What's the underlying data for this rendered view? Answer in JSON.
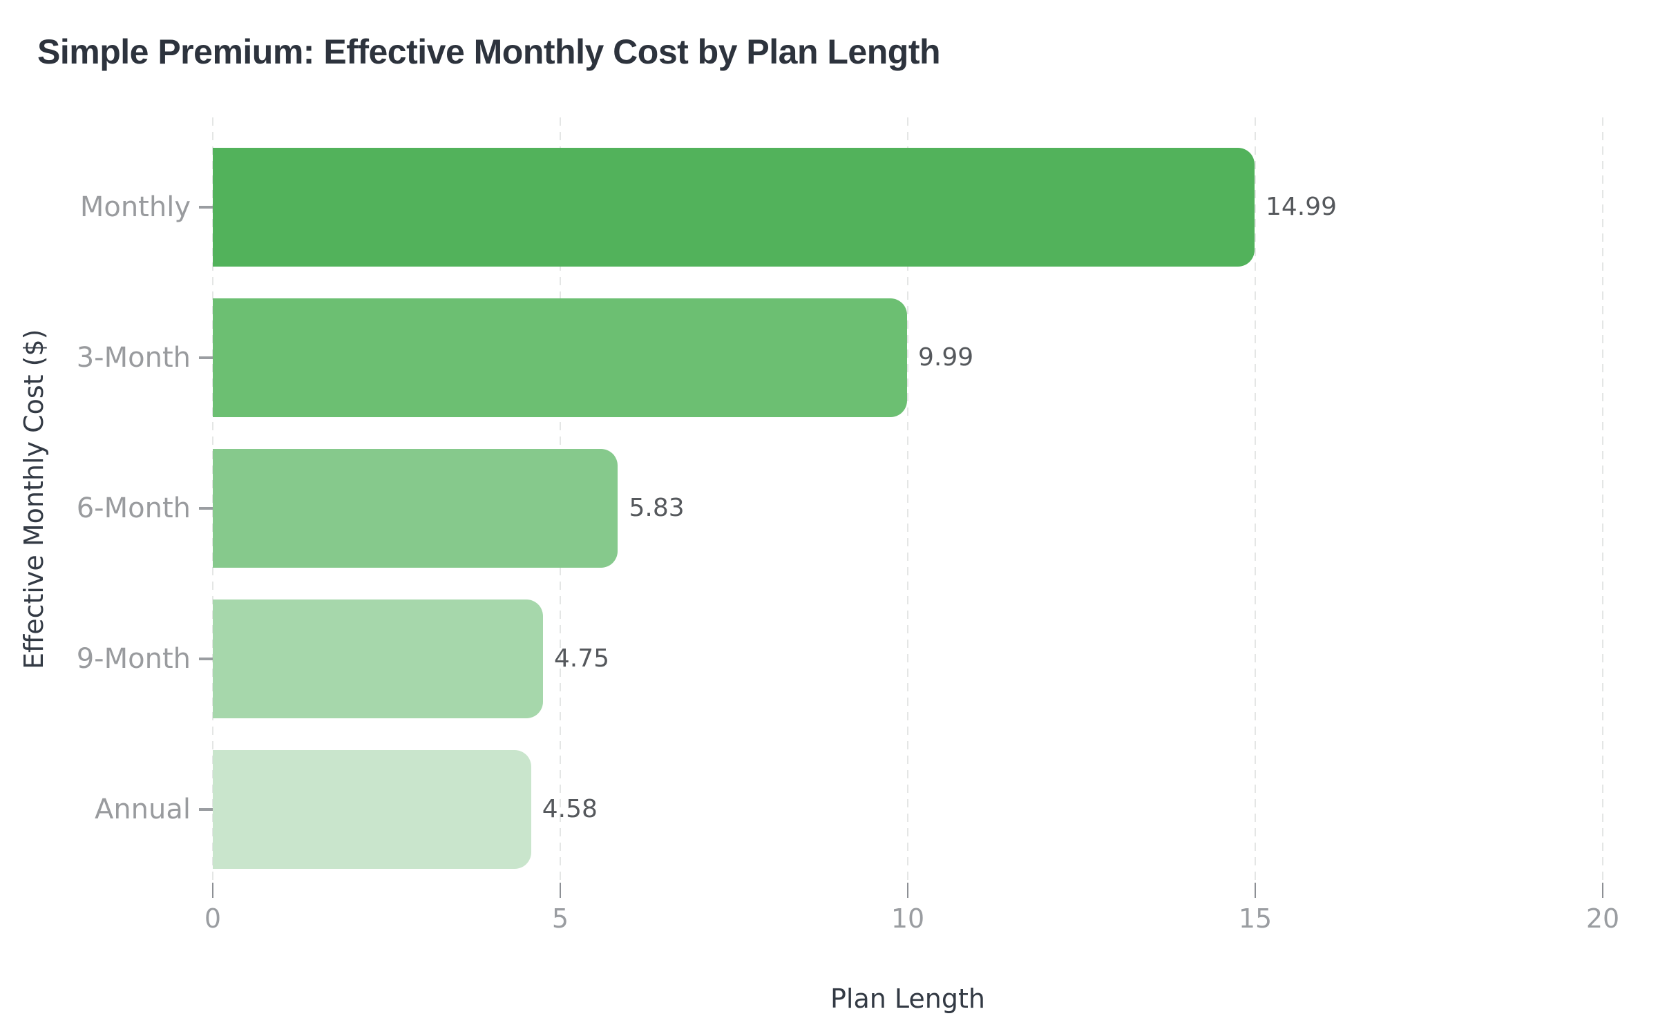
{
  "chart_data": {
    "type": "bar",
    "orientation": "horizontal",
    "title": "Simple Premium: Effective Monthly Cost by Plan Length",
    "xlabel": "Plan Length",
    "ylabel": "Effective Monthly Cost ($)",
    "categories": [
      "Monthly",
      "3-Month",
      "6-Month",
      "9-Month",
      "Annual"
    ],
    "values": [
      14.99,
      9.99,
      5.83,
      4.75,
      4.58
    ],
    "value_labels": [
      "14.99",
      "9.99",
      "5.83",
      "4.75",
      "4.58"
    ],
    "bar_colors": [
      "#52b25b",
      "#6cbf72",
      "#86c98c",
      "#a6d7ab",
      "#c9e5cc"
    ],
    "xlim": [
      0,
      20
    ],
    "x_ticks": [
      "0",
      "5",
      "10",
      "15",
      "20"
    ],
    "grid": "vertical-dashed",
    "legend": "none",
    "colors": {
      "title": "#2d333d",
      "axis_label": "#333a44",
      "tick_label": "#9a9da1",
      "value_label": "#55585c",
      "gridline": "#e4e6e5",
      "background": "#ffffff"
    }
  }
}
